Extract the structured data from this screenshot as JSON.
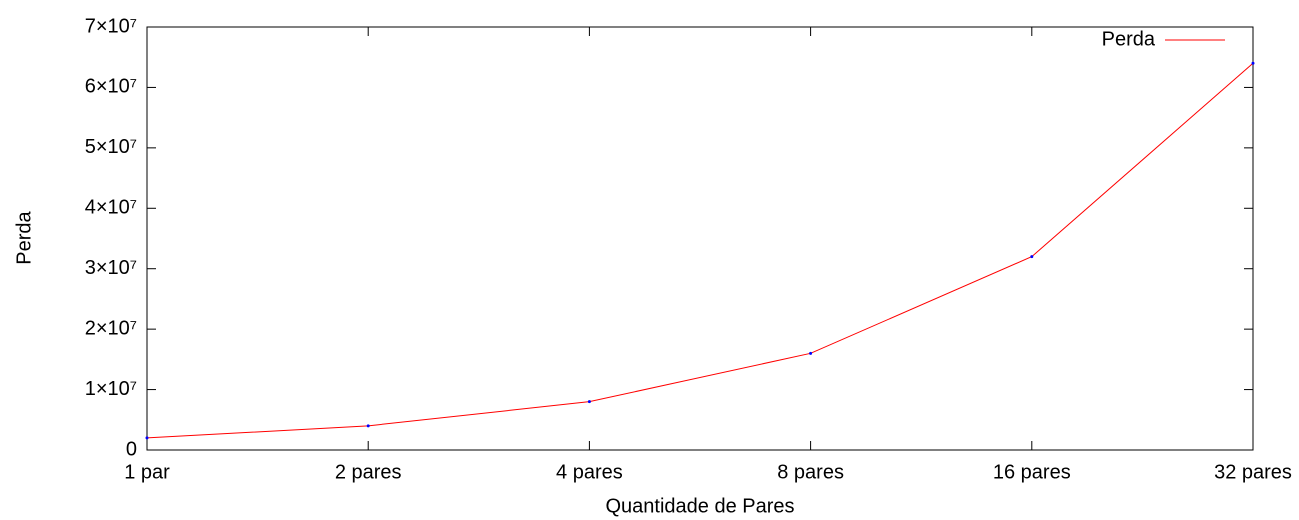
{
  "chart_data": {
    "type": "line",
    "xlabel": "Quantidade de Pares",
    "ylabel": "Perda",
    "categories": [
      "1 par",
      "2 pares",
      "4 pares",
      "8 pares",
      "16 pares",
      "32 pares"
    ],
    "series": [
      {
        "name": "Perda",
        "color": "#ff0000",
        "point_color": "#0000ff",
        "values": [
          2000000,
          4000000,
          8000000,
          16000000,
          32000000,
          64000000
        ]
      }
    ],
    "ylim": [
      0,
      70000000
    ],
    "yticks": [
      0,
      {
        "value": 10000000,
        "label": "1×10⁷"
      },
      {
        "value": 20000000,
        "label": "2×10⁷"
      },
      {
        "value": 30000000,
        "label": "3×10⁷"
      },
      {
        "value": 40000000,
        "label": "4×10⁷"
      },
      {
        "value": 50000000,
        "label": "5×10⁷"
      },
      {
        "value": 60000000,
        "label": "6×10⁷"
      },
      {
        "value": 70000000,
        "label": "7×10⁷"
      }
    ],
    "legend": "top-right"
  }
}
